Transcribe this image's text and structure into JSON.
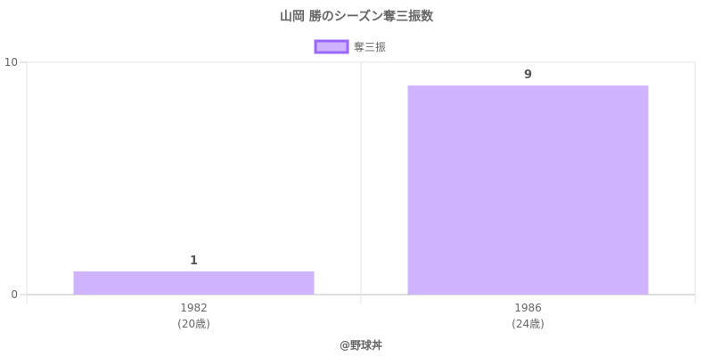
{
  "chart_data": {
    "type": "bar",
    "title": "山岡 勝のシーズン奪三振数",
    "categories": [
      {
        "label": "1982",
        "sublabel": "(20歳)"
      },
      {
        "label": "1986",
        "sublabel": "(24歳)"
      }
    ],
    "series": [
      {
        "name": "奪三振",
        "values": [
          1,
          9
        ],
        "fill": "#cfb3ff",
        "stroke": "#9966ff"
      }
    ],
    "ylim": [
      0,
      10
    ],
    "yticks": [
      0,
      10
    ],
    "grid": true,
    "legend_position": "top-center",
    "footer": "@野球丼"
  }
}
